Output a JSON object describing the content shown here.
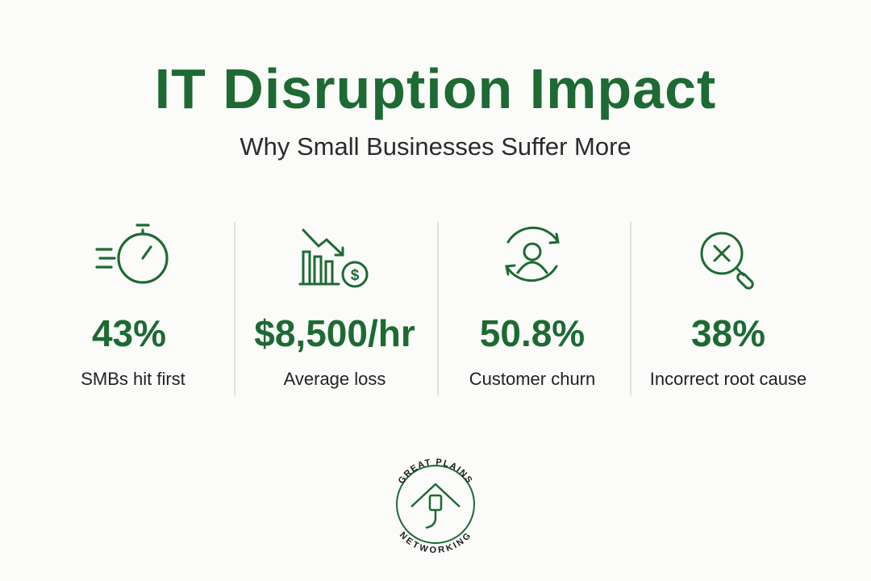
{
  "header": {
    "title": "IT Disruption Impact",
    "subtitle": "Why Small Businesses Suffer More"
  },
  "stats": [
    {
      "value": "43%",
      "label": "SMBs hit first"
    },
    {
      "value": "$8,500/hr",
      "label": "Average loss"
    },
    {
      "value": "50.8%",
      "label": "Customer churn"
    },
    {
      "value": "38%",
      "label": "Incorrect root cause"
    }
  ],
  "logo": {
    "top": "GREAT PLAINS",
    "bottom": "NETWORKING"
  }
}
